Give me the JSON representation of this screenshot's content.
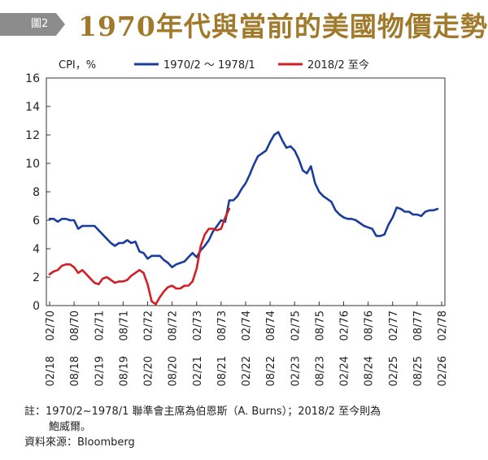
{
  "header": {
    "badge": "圖2",
    "title": "1970年代與當前的美國物價走勢"
  },
  "notes": {
    "line1": "註：1970/2~1978/1 聯準會主席為伯恩斯（A. Burns）；2018/2 至今則為",
    "line2": "鮑威爾。",
    "source": "資料來源：Bloomberg"
  },
  "chart_data": {
    "type": "line",
    "title": "",
    "ylabel": "CPI，%",
    "ylim": [
      0,
      16
    ],
    "yticks": [
      "0",
      "2",
      "4",
      "6",
      "8",
      "10",
      "12",
      "14",
      "16"
    ],
    "grid": false,
    "legend_position": "top",
    "x_ticks_1970s": [
      "02/70",
      "08/70",
      "02/71",
      "08/71",
      "02/72",
      "08/72",
      "02/73",
      "08/73",
      "02/74",
      "08/74",
      "02/75",
      "08/75",
      "02/76",
      "08/76",
      "02/77",
      "08/77",
      "02/78"
    ],
    "x_ticks_2018": [
      "02/18",
      "08/18",
      "02/19",
      "08/19",
      "02/20",
      "08/20",
      "02/21",
      "08/21",
      "02/22",
      "08/22",
      "02/23",
      "08/23",
      "02/24",
      "08/24",
      "02/25",
      "08/25",
      "02/26"
    ],
    "series": [
      {
        "name": "1970/2 ～ 1978/1",
        "color": "#1a3d9c",
        "values": [
          6.1,
          6.1,
          5.9,
          6.1,
          6.1,
          6.0,
          6.0,
          5.4,
          5.6,
          5.6,
          5.6,
          5.6,
          5.3,
          5.0,
          4.7,
          4.4,
          4.2,
          4.4,
          4.4,
          4.6,
          4.4,
          4.5,
          3.8,
          3.7,
          3.3,
          3.5,
          3.5,
          3.5,
          3.2,
          3.0,
          2.7,
          2.9,
          3.0,
          3.1,
          3.4,
          3.7,
          3.4,
          3.9,
          4.2,
          4.6,
          5.2,
          5.6,
          6.0,
          5.9,
          7.4,
          7.4,
          7.7,
          8.2,
          8.6,
          9.2,
          9.9,
          10.5,
          10.7,
          10.9,
          11.5,
          12.0,
          12.2,
          11.6,
          11.1,
          11.2,
          10.9,
          10.3,
          9.5,
          9.3,
          9.8,
          8.6,
          8.0,
          7.7,
          7.5,
          7.3,
          6.7,
          6.4,
          6.2,
          6.1,
          6.1,
          6.0,
          5.8,
          5.6,
          5.5,
          5.4,
          4.9,
          4.9,
          5.0,
          5.7,
          6.2,
          6.9,
          6.8,
          6.6,
          6.6,
          6.4,
          6.4,
          6.3,
          6.6,
          6.7,
          6.7,
          6.8
        ]
      },
      {
        "name": "2018/2 至今",
        "color": "#d21f26",
        "values": [
          2.2,
          2.4,
          2.5,
          2.8,
          2.9,
          2.9,
          2.7,
          2.3,
          2.5,
          2.2,
          1.9,
          1.6,
          1.5,
          1.9,
          2.0,
          1.8,
          1.6,
          1.7,
          1.7,
          1.8,
          2.1,
          2.3,
          2.5,
          2.3,
          1.5,
          0.3,
          0.1,
          0.6,
          1.0,
          1.3,
          1.4,
          1.2,
          1.2,
          1.4,
          1.4,
          1.7,
          2.6,
          4.2,
          5.0,
          5.4,
          5.4,
          5.3,
          5.4,
          6.2,
          6.8
        ]
      }
    ]
  }
}
